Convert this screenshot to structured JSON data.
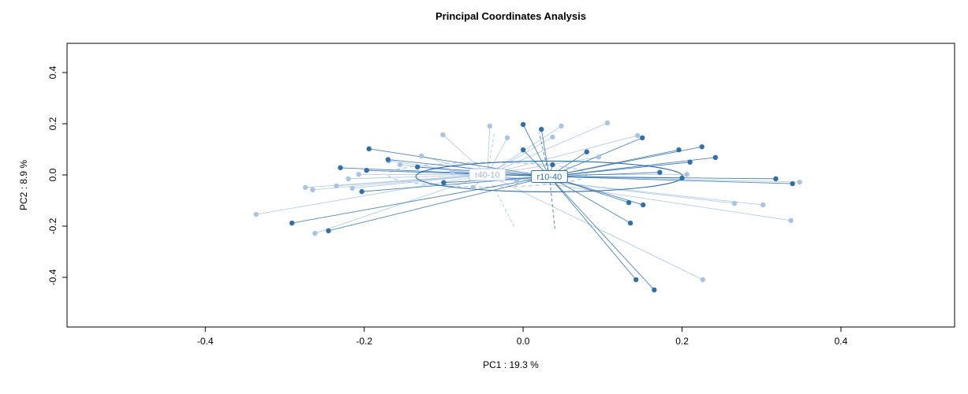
{
  "chart_data": {
    "type": "scatter",
    "title": "Principal Coordinates Analysis",
    "xlabel": "PC1 :  19.3 %",
    "ylabel": "PC2 :  8.9 %",
    "xlim": [
      -0.574,
      0.543
    ],
    "ylim": [
      -0.594,
      0.514
    ],
    "xticks": [
      -0.4,
      -0.2,
      0.0,
      0.2,
      0.4
    ],
    "yticks": [
      -0.4,
      -0.2,
      0.0,
      0.2,
      0.4
    ],
    "grid": false,
    "legend": "none",
    "groups": [
      {
        "name": "r40-10",
        "color": "#a9c4e2",
        "label_color": "#9db9d8",
        "centroid": [
          -0.045,
          0.001
        ],
        "ellipse": {
          "rx": 0.125,
          "ry": 0.048,
          "dashed": true
        },
        "dashed_rays": [
          [
            -0.036,
            0.17
          ],
          [
            -0.01,
            -0.21
          ]
        ],
        "points": [
          [
            -0.336,
            -0.154
          ],
          [
            -0.274,
            -0.049
          ],
          [
            -0.265,
            -0.058
          ],
          [
            -0.262,
            -0.228
          ],
          [
            -0.235,
            -0.043
          ],
          [
            -0.22,
            -0.015
          ],
          [
            -0.215,
            -0.052
          ],
          [
            -0.207,
            0.002
          ],
          [
            -0.169,
            0.055
          ],
          [
            -0.155,
            0.04
          ],
          [
            -0.128,
            0.074
          ],
          [
            -0.101,
            0.157
          ],
          [
            -0.089,
            0.012
          ],
          [
            -0.042,
            0.191
          ],
          [
            -0.02,
            0.145
          ],
          [
            0.037,
            0.148
          ],
          [
            0.048,
            0.191
          ],
          [
            0.106,
            0.203
          ],
          [
            0.144,
            0.154
          ],
          [
            0.095,
            0.07
          ],
          [
            0.206,
            0.002
          ],
          [
            0.266,
            -0.111
          ],
          [
            0.302,
            -0.117
          ],
          [
            0.337,
            -0.178
          ],
          [
            0.348,
            -0.028
          ],
          [
            0.226,
            -0.409
          ],
          [
            -0.008,
            -0.025
          ],
          [
            -0.063,
            -0.049
          ]
        ]
      },
      {
        "name": "r10-40",
        "color": "#2f6fad",
        "label_color": "#2f6fad",
        "centroid": [
          0.033,
          -0.006
        ],
        "ellipse": {
          "rx": 0.168,
          "ry": 0.06,
          "dashed": false
        },
        "dashed_rays": [
          [
            0.02,
            0.165
          ],
          [
            0.04,
            -0.21
          ]
        ],
        "points": [
          [
            -0.291,
            -0.188
          ],
          [
            -0.245,
            -0.218
          ],
          [
            -0.23,
            0.028
          ],
          [
            -0.203,
            -0.065
          ],
          [
            -0.197,
            0.018
          ],
          [
            -0.194,
            0.102
          ],
          [
            -0.17,
            0.06
          ],
          [
            -0.133,
            0.031
          ],
          [
            -0.1,
            -0.03
          ],
          [
            0.0,
            0.197
          ],
          [
            0.0,
            0.098
          ],
          [
            0.023,
            0.178
          ],
          [
            0.037,
            0.04
          ],
          [
            0.08,
            0.09
          ],
          [
            0.133,
            -0.108
          ],
          [
            0.135,
            -0.188
          ],
          [
            0.142,
            -0.409
          ],
          [
            0.15,
            0.145
          ],
          [
            0.151,
            -0.117
          ],
          [
            0.165,
            -0.449
          ],
          [
            0.172,
            0.01
          ],
          [
            0.196,
            0.098
          ],
          [
            0.2,
            -0.012
          ],
          [
            0.21,
            0.05
          ],
          [
            0.225,
            0.11
          ],
          [
            0.242,
            0.068
          ],
          [
            0.318,
            -0.015
          ],
          [
            0.339,
            -0.034
          ]
        ]
      }
    ]
  }
}
